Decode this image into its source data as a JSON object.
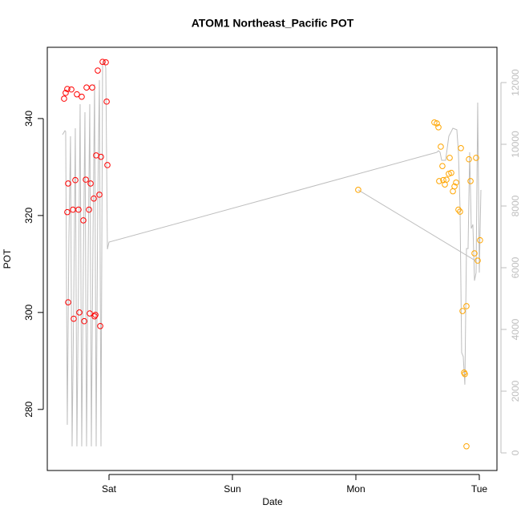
{
  "chart_data": {
    "type": "scatter",
    "title": "ATOM1 Northeast_Pacific POT",
    "xlabel": "Date",
    "ylabel": "POT",
    "xlim": [
      0.5,
      4.143
    ],
    "xticks": [
      {
        "value": 1,
        "label": "Sat"
      },
      {
        "value": 2,
        "label": "Sun"
      },
      {
        "value": 3,
        "label": "Mon"
      },
      {
        "value": 4,
        "label": "Tue"
      }
    ],
    "ylim": [
      267.4,
      354.7
    ],
    "yticks": [
      280,
      300,
      320,
      340
    ],
    "y2lim": [
      -571,
      13143
    ],
    "y2ticks": [
      0,
      2000,
      4000,
      6000,
      8000,
      10000,
      12000
    ],
    "y2color": "#bebebe",
    "series": [
      {
        "type": "line",
        "axis": "y2",
        "color": "#bebebe",
        "x": [
          0.623,
          0.643,
          0.649,
          0.662,
          0.675,
          0.688,
          0.701,
          0.714,
          0.727,
          0.74,
          0.753,
          0.766,
          0.779,
          0.792,
          0.805,
          0.818,
          0.831,
          0.844,
          0.857,
          0.87,
          0.883,
          0.896,
          0.909,
          0.922,
          0.935,
          0.948,
          0.961,
          0.974,
          0.987,
          1.0,
          3.656,
          3.669,
          3.682,
          3.695,
          3.727,
          3.753,
          3.786,
          3.818,
          3.831,
          3.844,
          3.857,
          3.87,
          3.883,
          3.896,
          3.909,
          3.922,
          3.935,
          3.948,
          3.961,
          3.974,
          3.987,
          4.0,
          4.013,
          null,
          3.019,
          3.968
        ],
        "values": [
          10310,
          10440,
          10410,
          910,
          6880,
          10260,
          210,
          4810,
          10520,
          210,
          5580,
          11300,
          210,
          6100,
          11040,
          210,
          6360,
          11300,
          210,
          6880,
          11950,
          210,
          8180,
          12080,
          210,
          12600,
          12700,
          12470,
          6600,
          6830,
          9740,
          9790,
          9740,
          9480,
          9480,
          10260,
          10520,
          10470,
          9740,
          7920,
          3250,
          3120,
          2210,
          6620,
          6620,
          9740,
          7270,
          7400,
          5580,
          5840,
          11350,
          5840,
          8520,
          null,
          8520,
          6230
        ]
      },
      {
        "type": "scatter",
        "color": "#ff0000",
        "x": [
          0.636,
          0.649,
          0.662,
          0.695,
          0.74,
          0.779,
          0.818,
          0.864,
          0.909,
          0.948,
          0.974,
          0.981,
          0.987,
          0.896,
          0.935,
          0.669,
          0.727,
          0.812,
          0.851,
          0.877,
          0.922,
          0.662,
          0.708,
          0.753,
          0.792,
          0.838,
          0.669,
          0.714,
          0.76,
          0.799,
          0.844,
          0.883,
          0.89,
          0.929
        ],
        "values": [
          344.1,
          345.3,
          346.1,
          346.0,
          345.0,
          344.5,
          346.4,
          346.4,
          349.9,
          351.7,
          351.6,
          343.5,
          330.4,
          332.4,
          332.1,
          326.6,
          327.3,
          327.4,
          326.6,
          323.5,
          324.3,
          320.7,
          321.2,
          321.2,
          319.0,
          321.2,
          302.1,
          298.7,
          300.0,
          298.2,
          299.8,
          299.2,
          299.5,
          297.2
        ]
      },
      {
        "type": "scatter",
        "color": "#ffa500",
        "x": [
          3.019,
          3.636,
          3.656,
          3.669,
          3.688,
          3.701,
          3.708,
          3.721,
          3.734,
          3.753,
          3.773,
          3.786,
          3.799,
          3.812,
          3.831,
          3.844,
          3.851,
          3.864,
          3.877,
          3.883,
          3.896,
          3.896,
          3.916,
          3.929,
          3.961,
          3.974,
          3.987,
          4.006,
          3.675,
          3.76
        ],
        "values": [
          325.3,
          339.2,
          339.0,
          338.2,
          334.2,
          330.2,
          327.3,
          326.4,
          327.4,
          328.6,
          328.8,
          325.0,
          326.0,
          326.8,
          321.2,
          320.8,
          333.9,
          300.3,
          287.6,
          287.3,
          301.3,
          272.4,
          331.6,
          327.1,
          312.2,
          331.9,
          310.7,
          314.9,
          327.1,
          331.9
        ]
      }
    ]
  }
}
